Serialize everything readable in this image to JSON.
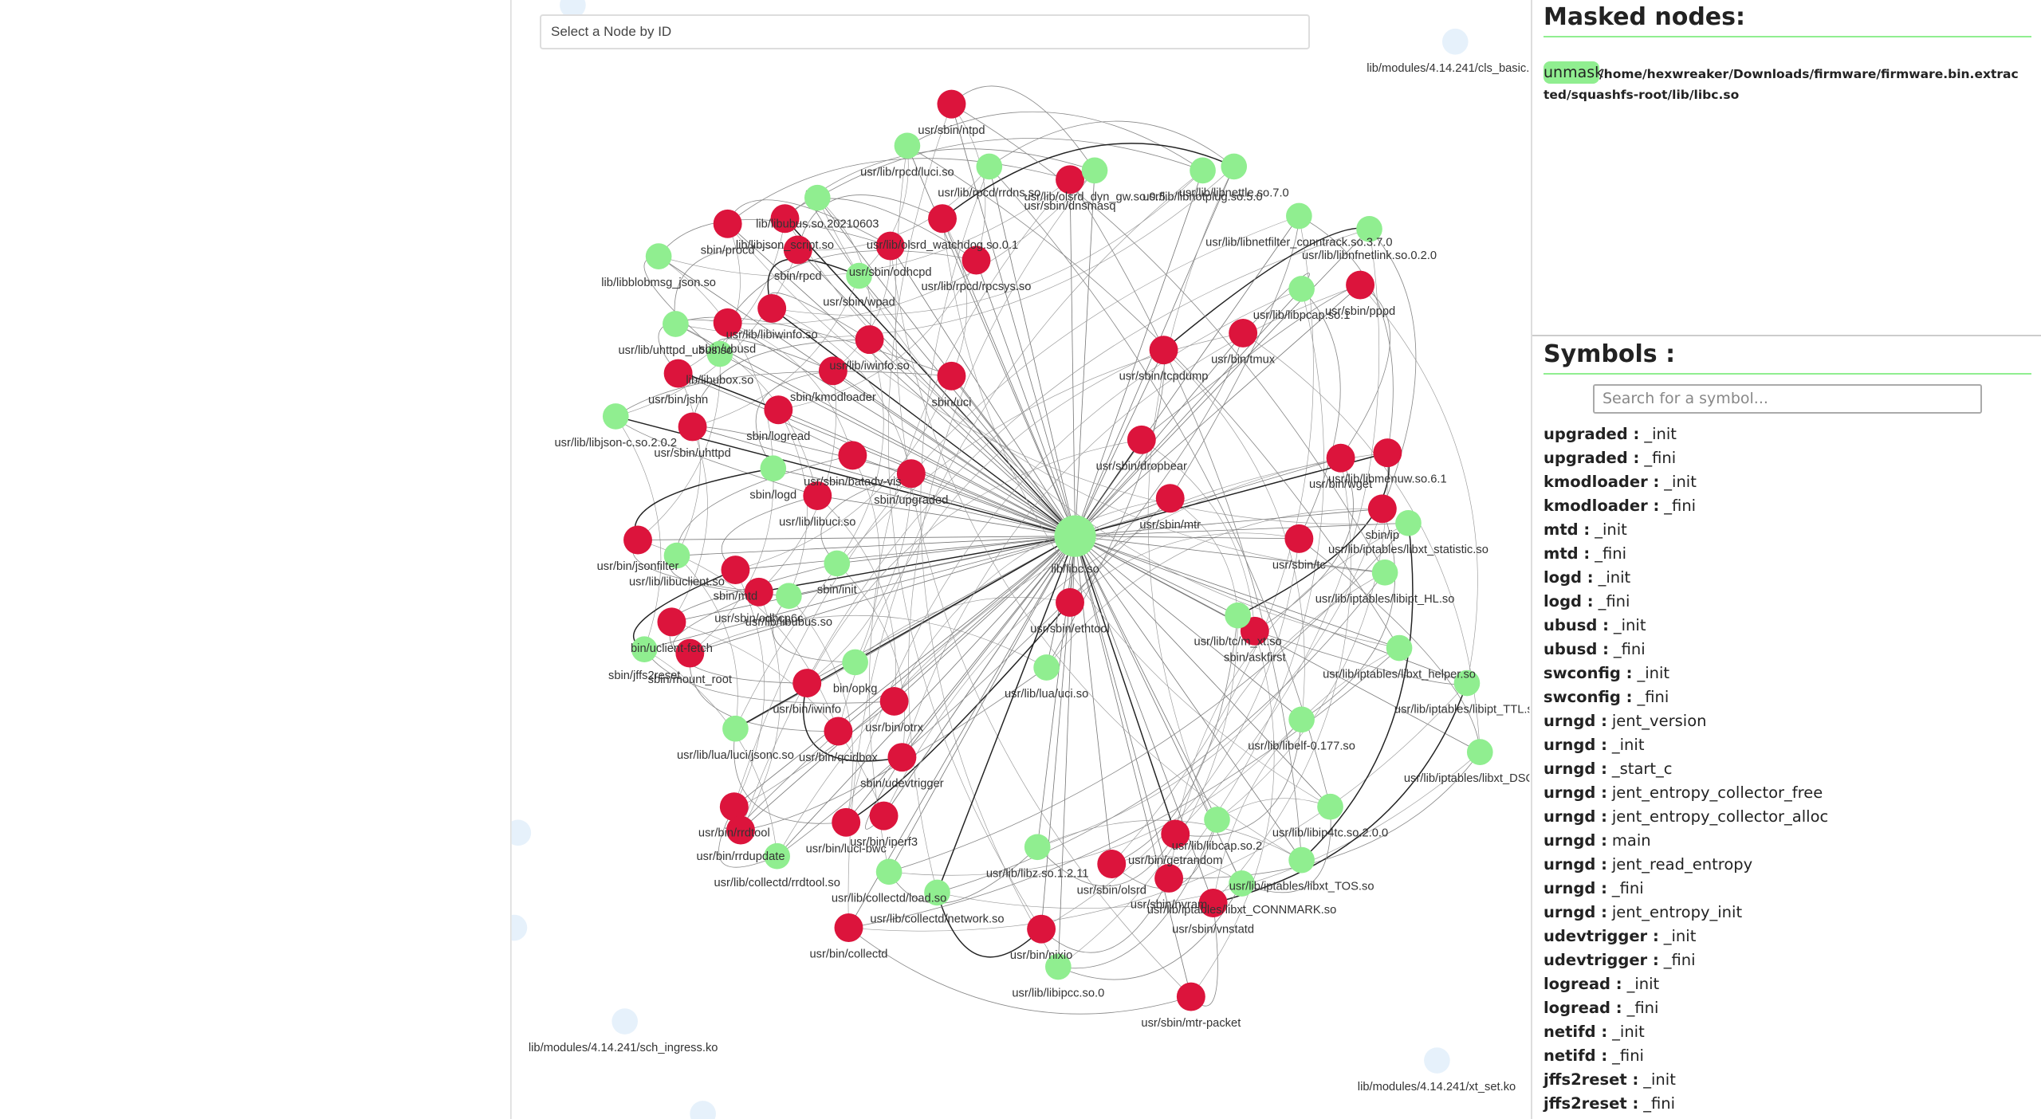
{
  "search_placeholder": "Select a Node by ID",
  "graph": {
    "nodes": [
      {
        "label": "lib/libc.so",
        "color": "#90ee90"
      },
      {
        "label": "usr/sbin/ntpd",
        "color": "#dc143c"
      },
      {
        "label": "usr/lib/rpcd/luci.so",
        "color": "#90ee90"
      },
      {
        "label": "usr/lib/rpcd/rrdns.so",
        "color": "#90ee90"
      },
      {
        "label": "usr/sbin/dnsmasq",
        "color": "#dc143c"
      },
      {
        "label": "usr/lib/olsrd_dyn_gw.so.0.5",
        "color": "#90ee90"
      },
      {
        "label": "usr/lib/libhotplug.so.5.0",
        "color": "#90ee90"
      },
      {
        "label": "usr/lib/libnettle.so.7.0",
        "color": "#90ee90"
      },
      {
        "label": "sbin/procd",
        "color": "#dc143c"
      },
      {
        "label": "lib/libjson_script.so",
        "color": "#dc143c"
      },
      {
        "label": "lib/libubus.so.20210603",
        "color": "#90ee90"
      },
      {
        "label": "usr/lib/olsrd_watchdog.so.0.1",
        "color": "#dc143c"
      },
      {
        "label": "usr/sbin/odhcpd",
        "color": "#dc143c"
      },
      {
        "label": "usr/lib/rpcd/rpcsys.so",
        "color": "#dc143c"
      },
      {
        "label": "usr/sbin/wpad",
        "color": "#90ee90"
      },
      {
        "label": "sbin/rpcd",
        "color": "#dc143c"
      },
      {
        "label": "lib/libblobmsg_json.so",
        "color": "#90ee90"
      },
      {
        "label": "sbin/ubusd",
        "color": "#dc143c"
      },
      {
        "label": "usr/lib/libiwinfo.so",
        "color": "#dc143c"
      },
      {
        "label": "usr/lib/uhttpd_ubus.so",
        "color": "#90ee90"
      },
      {
        "label": "lib/libubox.so",
        "color": "#90ee90"
      },
      {
        "label": "usr/bin/jshn",
        "color": "#dc143c"
      },
      {
        "label": "usr/lib/iwinfo.so",
        "color": "#dc143c"
      },
      {
        "label": "sbin/uci",
        "color": "#dc143c"
      },
      {
        "label": "sbin/kmodloader",
        "color": "#dc143c"
      },
      {
        "label": "sbin/logread",
        "color": "#dc143c"
      },
      {
        "label": "usr/sbin/uhttpd",
        "color": "#dc143c"
      },
      {
        "label": "usr/lib/libjson-c.so.2.0.2",
        "color": "#90ee90"
      },
      {
        "label": "sbin/logd",
        "color": "#90ee90"
      },
      {
        "label": "usr/sbin/batadv-vis",
        "color": "#dc143c"
      },
      {
        "label": "sbin/upgraded",
        "color": "#dc143c"
      },
      {
        "label": "usr/lib/libuci.so",
        "color": "#dc143c"
      },
      {
        "label": "usr/bin/jsonfilter",
        "color": "#dc143c"
      },
      {
        "label": "usr/lib/libuclient.so",
        "color": "#90ee90"
      },
      {
        "label": "sbin/init",
        "color": "#90ee90"
      },
      {
        "label": "sbin/mtd",
        "color": "#dc143c"
      },
      {
        "label": "usr/sbin/odhcp6c",
        "color": "#dc143c"
      },
      {
        "label": "usr/lib/libubus.so",
        "color": "#90ee90"
      },
      {
        "label": "bin/uclient-fetch",
        "color": "#dc143c"
      },
      {
        "label": "sbin/jffs2reset",
        "color": "#90ee90"
      },
      {
        "label": "sbin/mount_root",
        "color": "#dc143c"
      },
      {
        "label": "bin/opkg",
        "color": "#90ee90"
      },
      {
        "label": "usr/bin/iwinfo",
        "color": "#dc143c"
      },
      {
        "label": "usr/bin/otrx",
        "color": "#dc143c"
      },
      {
        "label": "usr/bin/qcidbox",
        "color": "#dc143c"
      },
      {
        "label": "usr/lib/lua/luci/jsonc.so",
        "color": "#90ee90"
      },
      {
        "label": "sbin/udevtrigger",
        "color": "#dc143c"
      },
      {
        "label": "usr/bin/rrdtool",
        "color": "#dc143c"
      },
      {
        "label": "usr/bin/rrdupdate",
        "color": "#dc143c"
      },
      {
        "label": "usr/bin/luci-bwc",
        "color": "#dc143c"
      },
      {
        "label": "usr/bin/iperf3",
        "color": "#dc143c"
      },
      {
        "label": "usr/lib/collectd/rrdtool.so",
        "color": "#90ee90"
      },
      {
        "label": "usr/lib/lua/uci.so",
        "color": "#90ee90"
      },
      {
        "label": "usr/sbin/ethtool",
        "color": "#dc143c"
      },
      {
        "label": "usr/sbin/dropbear",
        "color": "#dc143c"
      },
      {
        "label": "usr/sbin/mtr",
        "color": "#dc143c"
      },
      {
        "label": "usr/sbin/tcpdump",
        "color": "#dc143c"
      },
      {
        "label": "usr/bin/tmux",
        "color": "#dc143c"
      },
      {
        "label": "usr/sbin/pppd",
        "color": "#dc143c"
      },
      {
        "label": "usr/lib/libnetfilter_conntrack.so.3.7.0",
        "color": "#90ee90"
      },
      {
        "label": "usr/lib/libnfnetlink.so.0.2.0",
        "color": "#90ee90"
      },
      {
        "label": "usr/lib/libpcap.so.1",
        "color": "#90ee90"
      },
      {
        "label": "usr/bin/wget",
        "color": "#dc143c"
      },
      {
        "label": "usr/lib/libmenuw.so.6.1",
        "color": "#dc143c"
      },
      {
        "label": "sbin/ip",
        "color": "#dc143c"
      },
      {
        "label": "usr/sbin/tc",
        "color": "#dc143c"
      },
      {
        "label": "sbin/askfirst",
        "color": "#dc143c"
      },
      {
        "label": "usr/lib/tc/m_xt.so",
        "color": "#90ee90"
      },
      {
        "label": "usr/lib/libelf-0.177.so",
        "color": "#90ee90"
      },
      {
        "label": "usr/lib/iptables/libxt_DSCP.so",
        "color": "#90ee90"
      },
      {
        "label": "usr/lib/iptables/libipt_TTL.so",
        "color": "#90ee90"
      },
      {
        "label": "usr/sbin/olsrd",
        "color": "#dc143c"
      },
      {
        "label": "usr/bin/getrandom",
        "color": "#dc143c"
      },
      {
        "label": "usr/sbin/nvram",
        "color": "#dc143c"
      },
      {
        "label": "usr/sbin/vnstatd",
        "color": "#dc143c"
      },
      {
        "label": "usr/lib/libcap.so.2",
        "color": "#90ee90"
      },
      {
        "label": "usr/lib/libz.so.1.2.11",
        "color": "#90ee90"
      },
      {
        "label": "usr/bin/nixio",
        "color": "#dc143c"
      },
      {
        "label": "usr/sbin/mtr-packet",
        "color": "#dc143c"
      },
      {
        "label": "usr/lib/libipcc.so.0",
        "color": "#90ee90"
      },
      {
        "label": "usr/lib/collectd/load.so",
        "color": "#90ee90"
      },
      {
        "label": "usr/lib/collectd/network.so",
        "color": "#90ee90"
      },
      {
        "label": "usr/bin/collectd",
        "color": "#dc143c"
      },
      {
        "label": "usr/lib/iptables/libxt_CONNMARK.so",
        "color": "#90ee90"
      },
      {
        "label": "usr/lib/iptables/libxt_statistic.so",
        "color": "#90ee90"
      },
      {
        "label": "usr/lib/iptables/libipt_HL.so",
        "color": "#90ee90"
      },
      {
        "label": "usr/lib/iptables/libxt_helper.so",
        "color": "#90ee90"
      },
      {
        "label": "usr/lib/libip4tc.so.2.0.0",
        "color": "#90ee90"
      },
      {
        "label": "usr/lib/iptables/libxt_TOS.so",
        "color": "#90ee90"
      }
    ],
    "background_labels": [
      "lib/modules/4.14.241/cls_basic.ko",
      "lib/modules/4.14.241/sch_ingress.ko",
      "lib/modules/4.14.241/xt_set.ko"
    ]
  },
  "masked": {
    "title": "Masked nodes:",
    "button": "unmask",
    "path": "/home/hexwreaker/Downloads/firmware/firmware.bin.extracted/squashfs-root/lib/libc.so"
  },
  "symbols": {
    "title": "Symbols :",
    "placeholder": "Search for a symbol...",
    "rows": [
      {
        "name": "upgraded :",
        "symbol": "_init"
      },
      {
        "name": "upgraded :",
        "symbol": "_fini"
      },
      {
        "name": "kmodloader :",
        "symbol": "_init"
      },
      {
        "name": "kmodloader :",
        "symbol": "_fini"
      },
      {
        "name": "mtd :",
        "symbol": "_init"
      },
      {
        "name": "mtd :",
        "symbol": "_fini"
      },
      {
        "name": "logd :",
        "symbol": "_init"
      },
      {
        "name": "logd :",
        "symbol": "_fini"
      },
      {
        "name": "ubusd :",
        "symbol": "_init"
      },
      {
        "name": "ubusd :",
        "symbol": "_fini"
      },
      {
        "name": "swconfig :",
        "symbol": "_init"
      },
      {
        "name": "swconfig :",
        "symbol": "_fini"
      },
      {
        "name": "urngd :",
        "symbol": "jent_version"
      },
      {
        "name": "urngd :",
        "symbol": "_init"
      },
      {
        "name": "urngd :",
        "symbol": "_start_c"
      },
      {
        "name": "urngd :",
        "symbol": "jent_entropy_collector_free"
      },
      {
        "name": "urngd :",
        "symbol": "jent_entropy_collector_alloc"
      },
      {
        "name": "urngd :",
        "symbol": "main"
      },
      {
        "name": "urngd :",
        "symbol": "jent_read_entropy"
      },
      {
        "name": "urngd :",
        "symbol": "_fini"
      },
      {
        "name": "urngd :",
        "symbol": "jent_entropy_init"
      },
      {
        "name": "udevtrigger :",
        "symbol": "_init"
      },
      {
        "name": "udevtrigger :",
        "symbol": "_fini"
      },
      {
        "name": "logread :",
        "symbol": "_init"
      },
      {
        "name": "logread :",
        "symbol": "_fini"
      },
      {
        "name": "netifd :",
        "symbol": "_init"
      },
      {
        "name": "netifd :",
        "symbol": "_fini"
      },
      {
        "name": "jffs2reset :",
        "symbol": "_init"
      },
      {
        "name": "jffs2reset :",
        "symbol": "_fini"
      }
    ]
  }
}
